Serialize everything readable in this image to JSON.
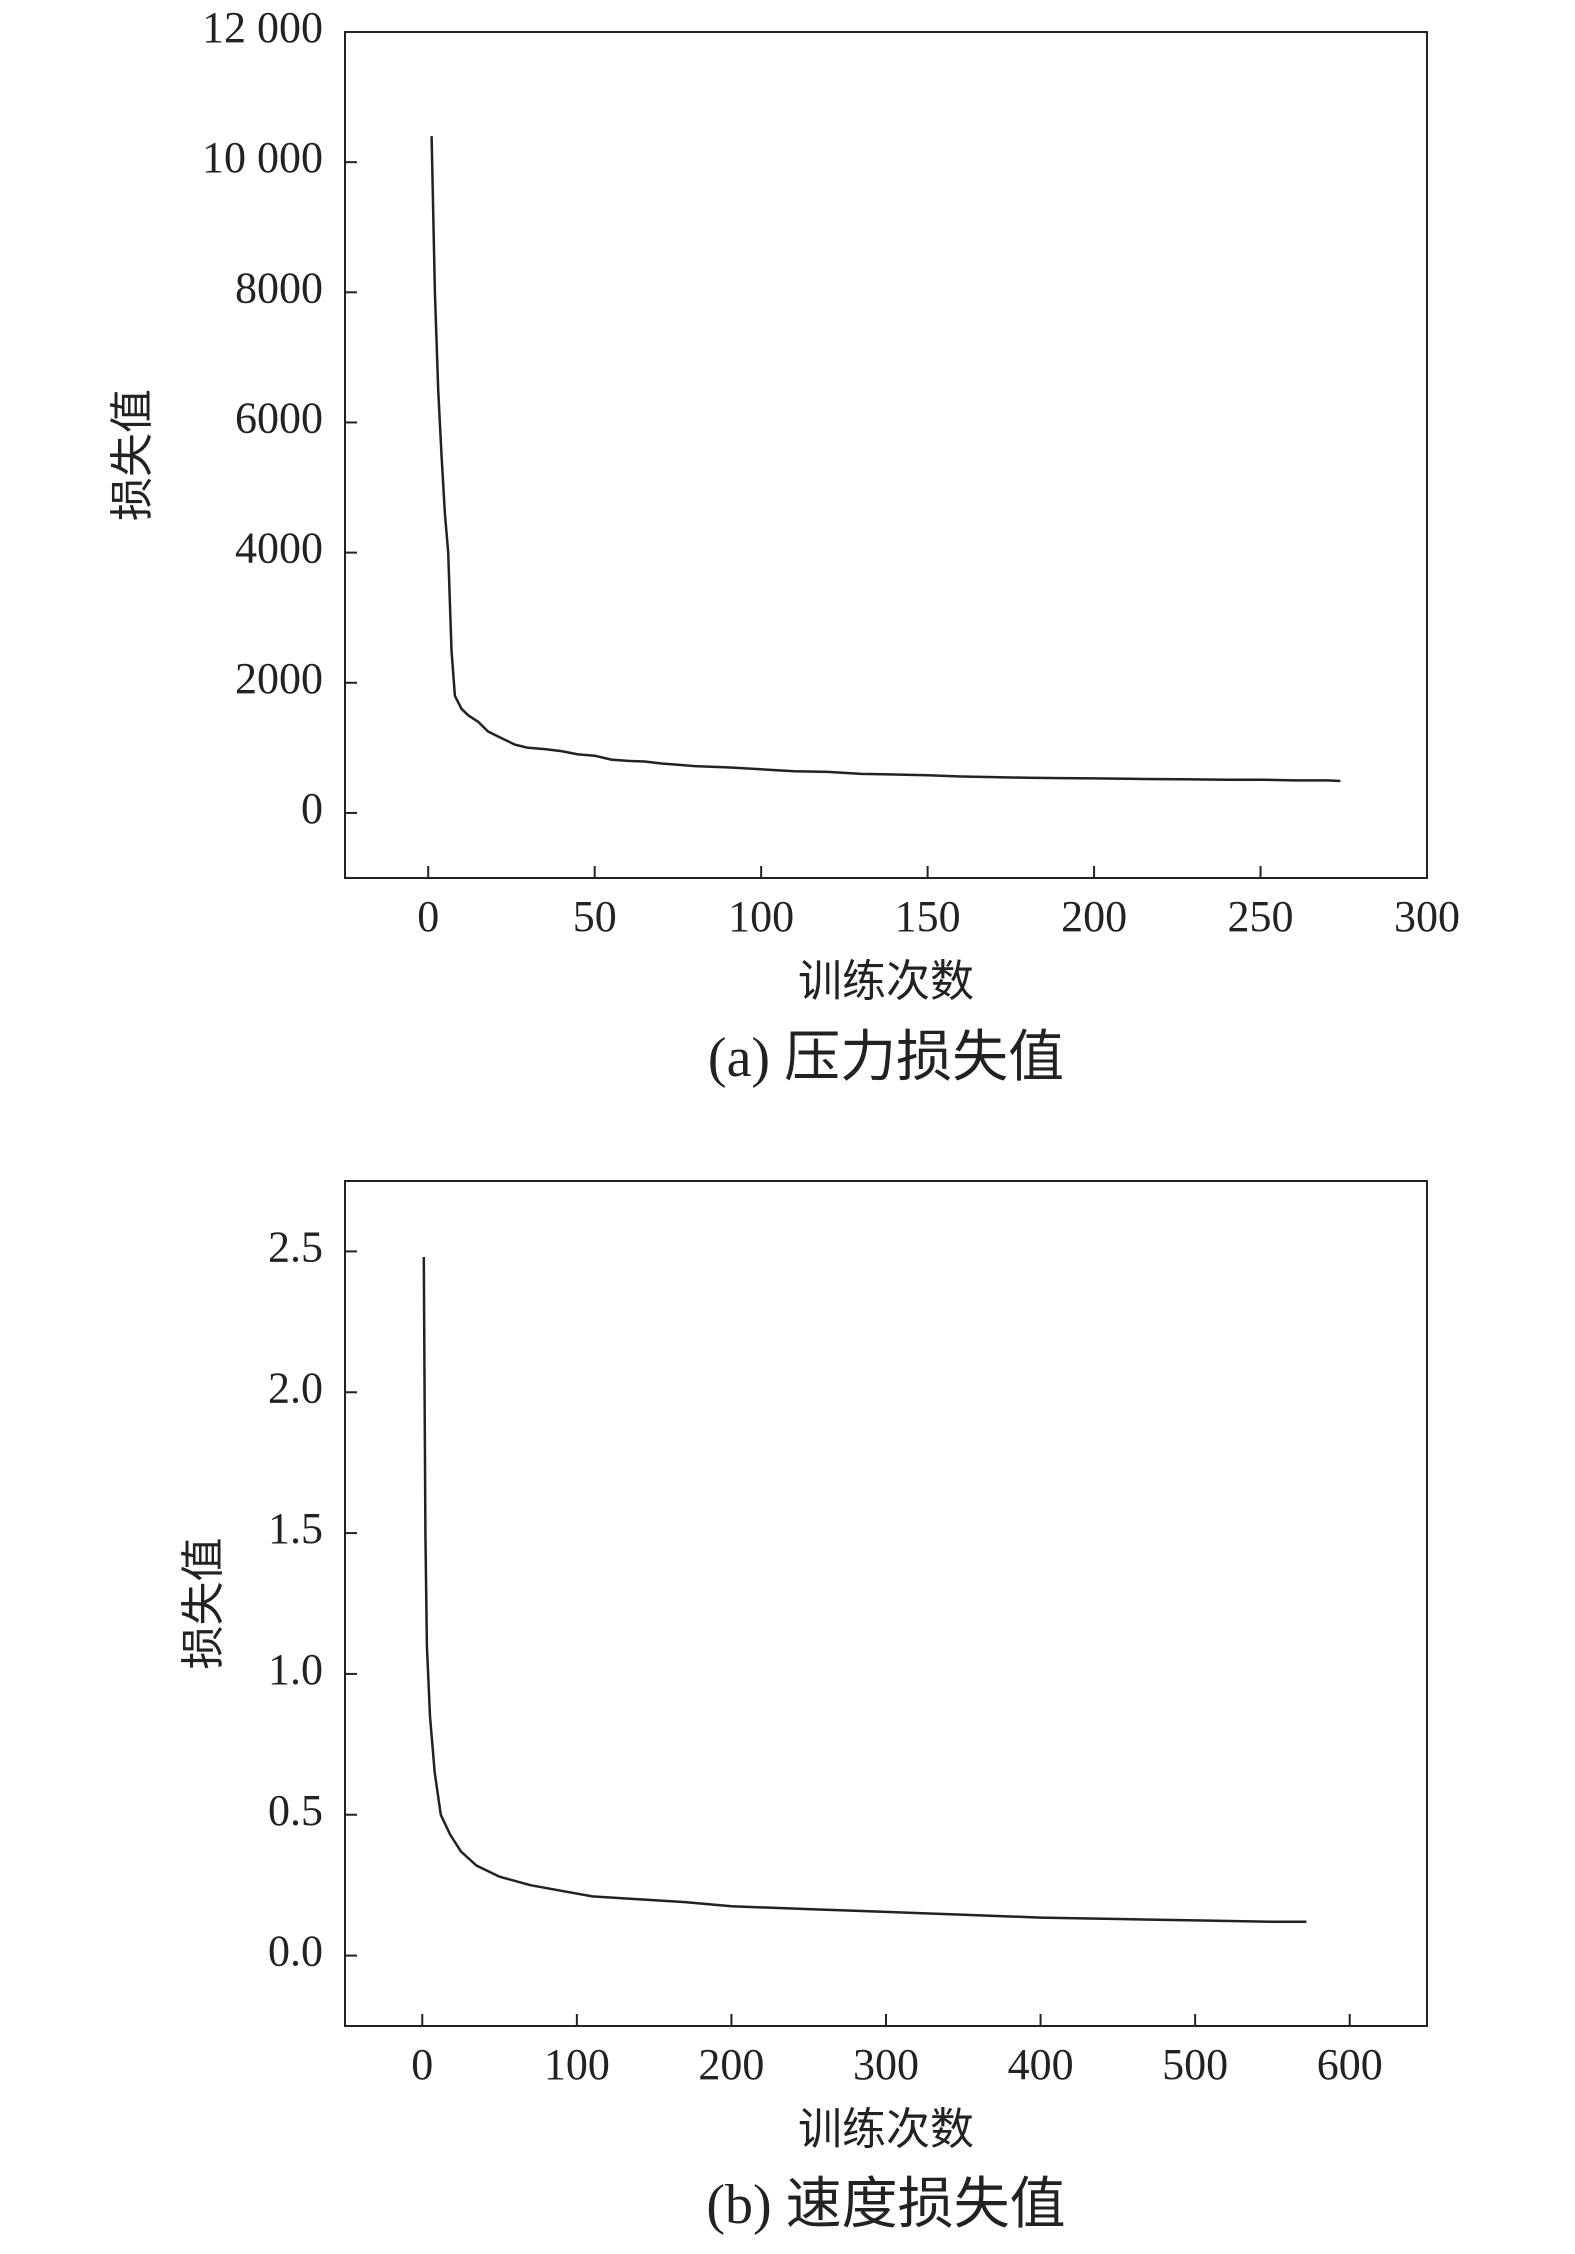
{
  "chart_data": [
    {
      "type": "line",
      "caption": "(a) 压力损失值",
      "xlabel": "训练次数",
      "ylabel": "损失值",
      "color": "#222222",
      "xlim": [
        -25,
        300
      ],
      "xticks": [
        0,
        50,
        100,
        150,
        200,
        250,
        300
      ],
      "ylim": [
        -1000,
        12000
      ],
      "yticks": [
        0,
        2000,
        4000,
        6000,
        8000,
        {
          "value": 10000,
          "label": "10 000"
        },
        {
          "value": 12000,
          "label": "12 000"
        }
      ],
      "x": [
        1,
        2,
        3,
        4,
        5,
        6,
        7,
        8,
        10,
        12,
        15,
        18,
        22,
        26,
        30,
        35,
        40,
        45,
        50,
        55,
        60,
        65,
        70,
        75,
        80,
        90,
        100,
        110,
        120,
        130,
        140,
        150,
        160,
        170,
        180,
        190,
        200,
        210,
        220,
        230,
        240,
        250,
        260,
        270,
        274
      ],
      "values": [
        10400,
        8000,
        6500,
        5500,
        4600,
        4000,
        2500,
        1800,
        1600,
        1500,
        1400,
        1250,
        1150,
        1050,
        1000,
        980,
        950,
        900,
        880,
        820,
        800,
        790,
        760,
        740,
        720,
        700,
        670,
        640,
        630,
        600,
        590,
        580,
        560,
        550,
        540,
        535,
        530,
        525,
        520,
        515,
        510,
        510,
        500,
        500,
        490
      ]
    },
    {
      "type": "line",
      "caption": "(b) 速度损失值",
      "xlabel": "训练次数",
      "ylabel": "损失值",
      "color": "#222222",
      "xlim": [
        -50,
        650
      ],
      "xticks": [
        0,
        100,
        200,
        300,
        400,
        500,
        600
      ],
      "ylim": [
        -0.25,
        2.75
      ],
      "yticks": [
        {
          "value": 0,
          "label": "0.0"
        },
        0.5,
        {
          "value": 1,
          "label": "1.0"
        },
        1.5,
        {
          "value": 2,
          "label": "2.0"
        },
        2.5
      ],
      "x": [
        1,
        2,
        3,
        5,
        8,
        12,
        18,
        25,
        35,
        50,
        70,
        90,
        110,
        140,
        170,
        200,
        250,
        300,
        350,
        400,
        450,
        500,
        550,
        572
      ],
      "values": [
        2.48,
        1.5,
        1.1,
        0.85,
        0.65,
        0.5,
        0.43,
        0.37,
        0.32,
        0.28,
        0.25,
        0.23,
        0.21,
        0.2,
        0.19,
        0.175,
        0.165,
        0.155,
        0.145,
        0.135,
        0.13,
        0.125,
        0.12,
        0.12
      ]
    }
  ]
}
